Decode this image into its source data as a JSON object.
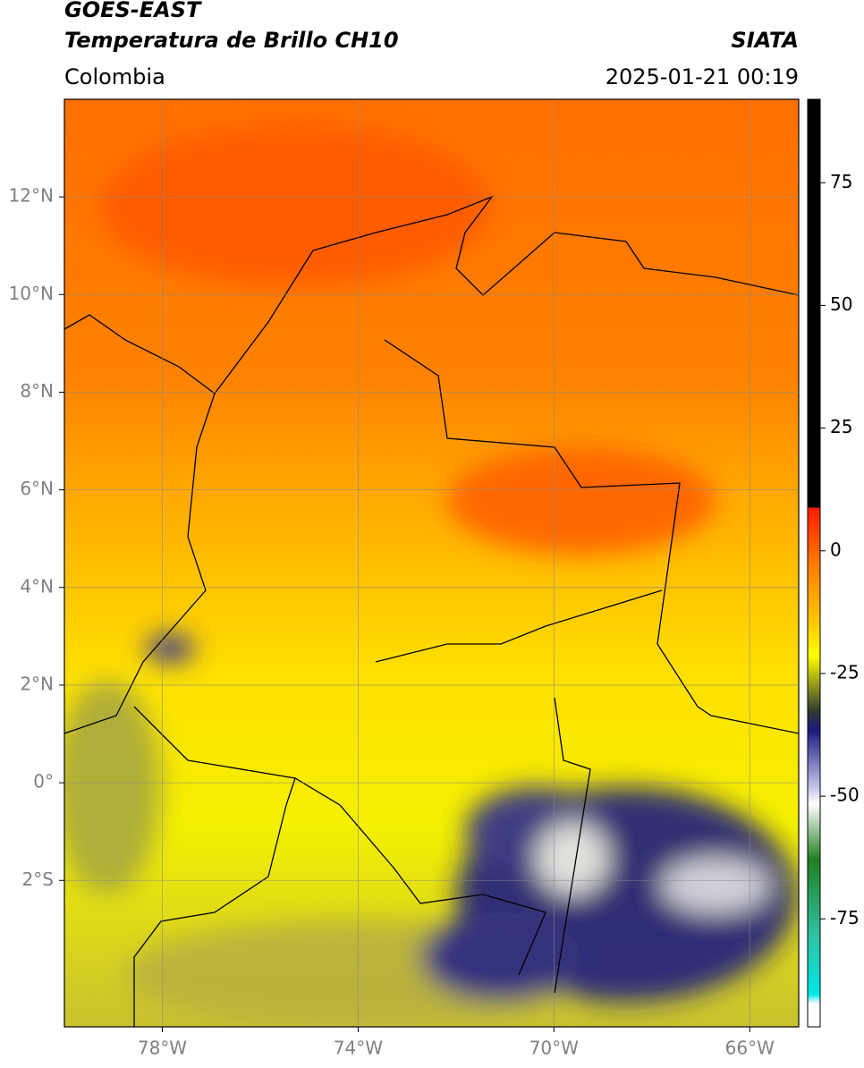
{
  "header": {
    "satellite": "GOES-EAST",
    "product": "Temperatura de Brillo CH10",
    "source": "SIATA",
    "region": "Colombia",
    "datetime": "2025-01-21 00:19"
  },
  "map": {
    "xlim": [
      -80,
      -65
    ],
    "ylim": [
      -5,
      14
    ],
    "xticks": [
      {
        "value": -78,
        "label": "78°W"
      },
      {
        "value": -74,
        "label": "74°W"
      },
      {
        "value": -70,
        "label": "70°W"
      },
      {
        "value": -66,
        "label": "66°W"
      }
    ],
    "yticks": [
      {
        "value": 12,
        "label": "12°N"
      },
      {
        "value": 10,
        "label": "10°N"
      },
      {
        "value": 8,
        "label": "8°N"
      },
      {
        "value": 6,
        "label": "6°N"
      },
      {
        "value": 4,
        "label": "4°N"
      },
      {
        "value": 2,
        "label": "2°N"
      },
      {
        "value": 0,
        "label": "0°"
      },
      {
        "value": -2,
        "label": "2°S"
      }
    ],
    "grid": true
  },
  "colorbar": {
    "lim": [
      -97,
      92
    ],
    "ticks": [
      75,
      50,
      25,
      0,
      -25,
      -50,
      -75
    ]
  }
}
